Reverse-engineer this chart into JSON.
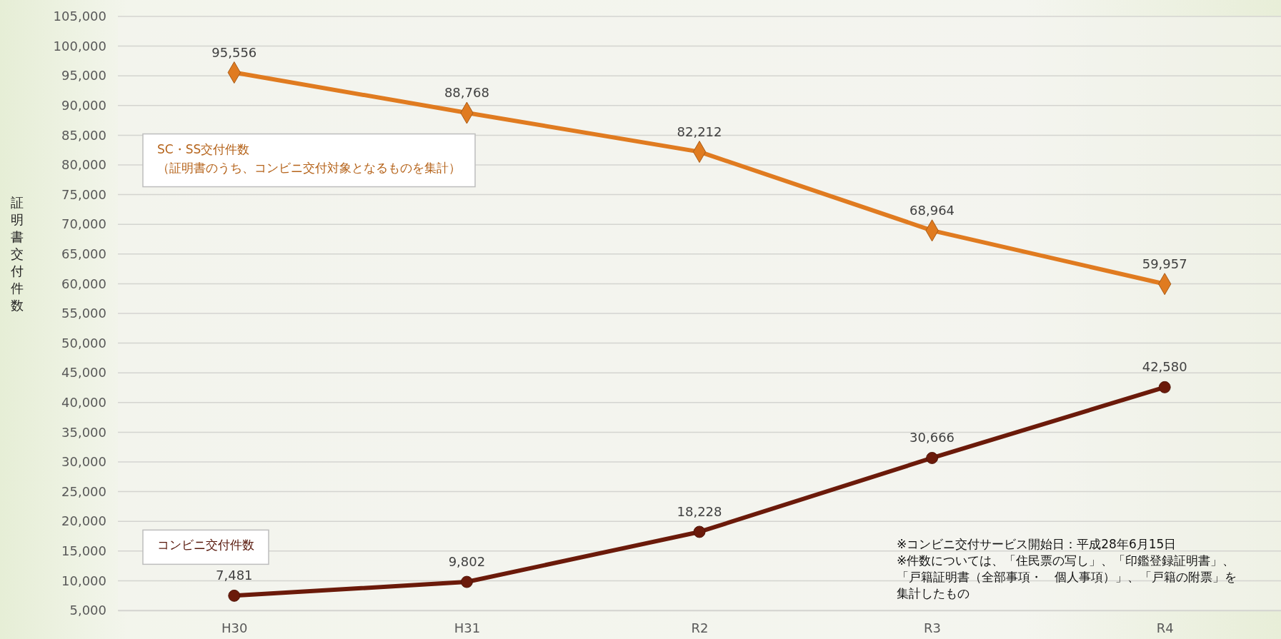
{
  "chart_data": {
    "type": "line",
    "ylabel": "証明書交付件数",
    "categories": [
      "H30",
      "H31",
      "R2",
      "R3",
      "R4"
    ],
    "series": [
      {
        "name": "SC・SS交付件数（証明書のうち、コンビニ交付対象となるものを集計）",
        "color": "#e07b20",
        "marker": "diamond",
        "values": [
          95556,
          88768,
          82212,
          68964,
          59957
        ],
        "value_labels": [
          "95,556",
          "88,768",
          "82,212",
          "68,964",
          "59,957"
        ]
      },
      {
        "name": "コンビニ交付件数",
        "color": "#6b1a0a",
        "marker": "circle",
        "values": [
          7481,
          9802,
          18228,
          30666,
          42580
        ],
        "value_labels": [
          "7,481",
          "9,802",
          "18,228",
          "30,666",
          "42,580"
        ]
      }
    ],
    "ylim": [
      5000,
      105000
    ],
    "yticks": [
      {
        "value": 5000,
        "label": "5,000"
      },
      {
        "value": 10000,
        "label": "10,000"
      },
      {
        "value": 15000,
        "label": "15,000"
      },
      {
        "value": 20000,
        "label": "20,000"
      },
      {
        "value": 25000,
        "label": "25,000"
      },
      {
        "value": 30000,
        "label": "30,000"
      },
      {
        "value": 35000,
        "label": "35,000"
      },
      {
        "value": 40000,
        "label": "40,000"
      },
      {
        "value": 45000,
        "label": "45,000"
      },
      {
        "value": 50000,
        "label": "50,000"
      },
      {
        "value": 55000,
        "label": "55,000"
      },
      {
        "value": 60000,
        "label": "60,000"
      },
      {
        "value": 65000,
        "label": "65,000"
      },
      {
        "value": 70000,
        "label": "70,000"
      },
      {
        "value": 75000,
        "label": "75,000"
      },
      {
        "value": 80000,
        "label": "80,000"
      },
      {
        "value": 85000,
        "label": "85,000"
      },
      {
        "value": 90000,
        "label": "90,000"
      },
      {
        "value": 95000,
        "label": "95,000"
      },
      {
        "value": 100000,
        "label": "100,000"
      },
      {
        "value": 105000,
        "label": "105,000"
      }
    ],
    "grid": "y",
    "legend": false,
    "annotations": [
      "※コンビニ交付サービス開始日：平成28年6月15日",
      "※件数については、「住民票の写し」、「印鑑登録証明書」、",
      "「戸籍証明書（全部事項・　個人事項）」、「戸籍の附票」を",
      "集計したもの"
    ]
  }
}
